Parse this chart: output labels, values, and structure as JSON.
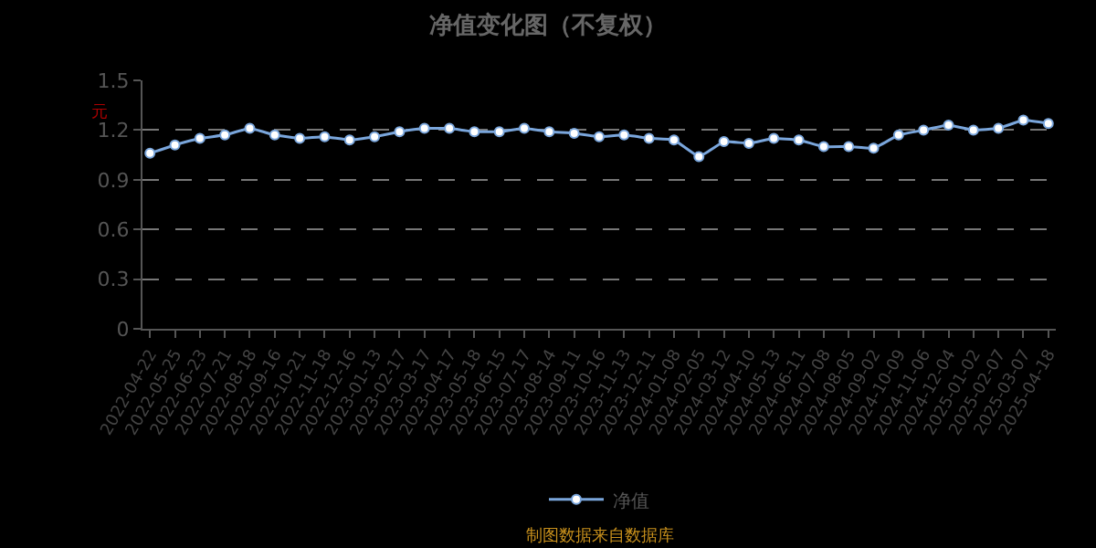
{
  "chart_data": {
    "type": "line",
    "title": "净值变化图（不复权）",
    "ylabel": "元",
    "categories": [
      "2022-04-22",
      "2022-05-25",
      "2022-06-23",
      "2022-07-21",
      "2022-08-18",
      "2022-09-16",
      "2022-10-21",
      "2022-11-18",
      "2022-12-16",
      "2023-01-13",
      "2023-02-17",
      "2023-03-17",
      "2023-04-17",
      "2023-05-18",
      "2023-06-15",
      "2023-07-17",
      "2023-08-14",
      "2023-09-11",
      "2023-10-16",
      "2023-11-13",
      "2023-12-11",
      "2024-01-08",
      "2024-02-05",
      "2024-03-12",
      "2024-04-10",
      "2024-05-13",
      "2024-06-11",
      "2024-07-08",
      "2024-08-05",
      "2024-09-02",
      "2024-10-09",
      "2024-11-06",
      "2024-12-04",
      "2025-01-02",
      "2025-02-07",
      "2025-03-07",
      "2025-04-18"
    ],
    "series": [
      {
        "name": "净值",
        "color": "#7aa6dc",
        "values": [
          1.06,
          1.11,
          1.15,
          1.17,
          1.21,
          1.17,
          1.15,
          1.16,
          1.14,
          1.16,
          1.19,
          1.21,
          1.21,
          1.19,
          1.19,
          1.21,
          1.19,
          1.18,
          1.16,
          1.17,
          1.15,
          1.14,
          1.04,
          1.13,
          1.12,
          1.15,
          1.14,
          1.1,
          1.1,
          1.09,
          1.17,
          1.2,
          1.23,
          1.2,
          1.21,
          1.26,
          1.24
        ]
      }
    ],
    "ylim": [
      0,
      1.5
    ],
    "yticks": [
      0,
      0.3,
      0.6,
      0.9,
      1.2,
      1.5
    ],
    "grid": "y",
    "legend": "bottom",
    "marker": "circle",
    "line_style": "solid",
    "annotations": [
      "制图数据来自数据库"
    ]
  }
}
